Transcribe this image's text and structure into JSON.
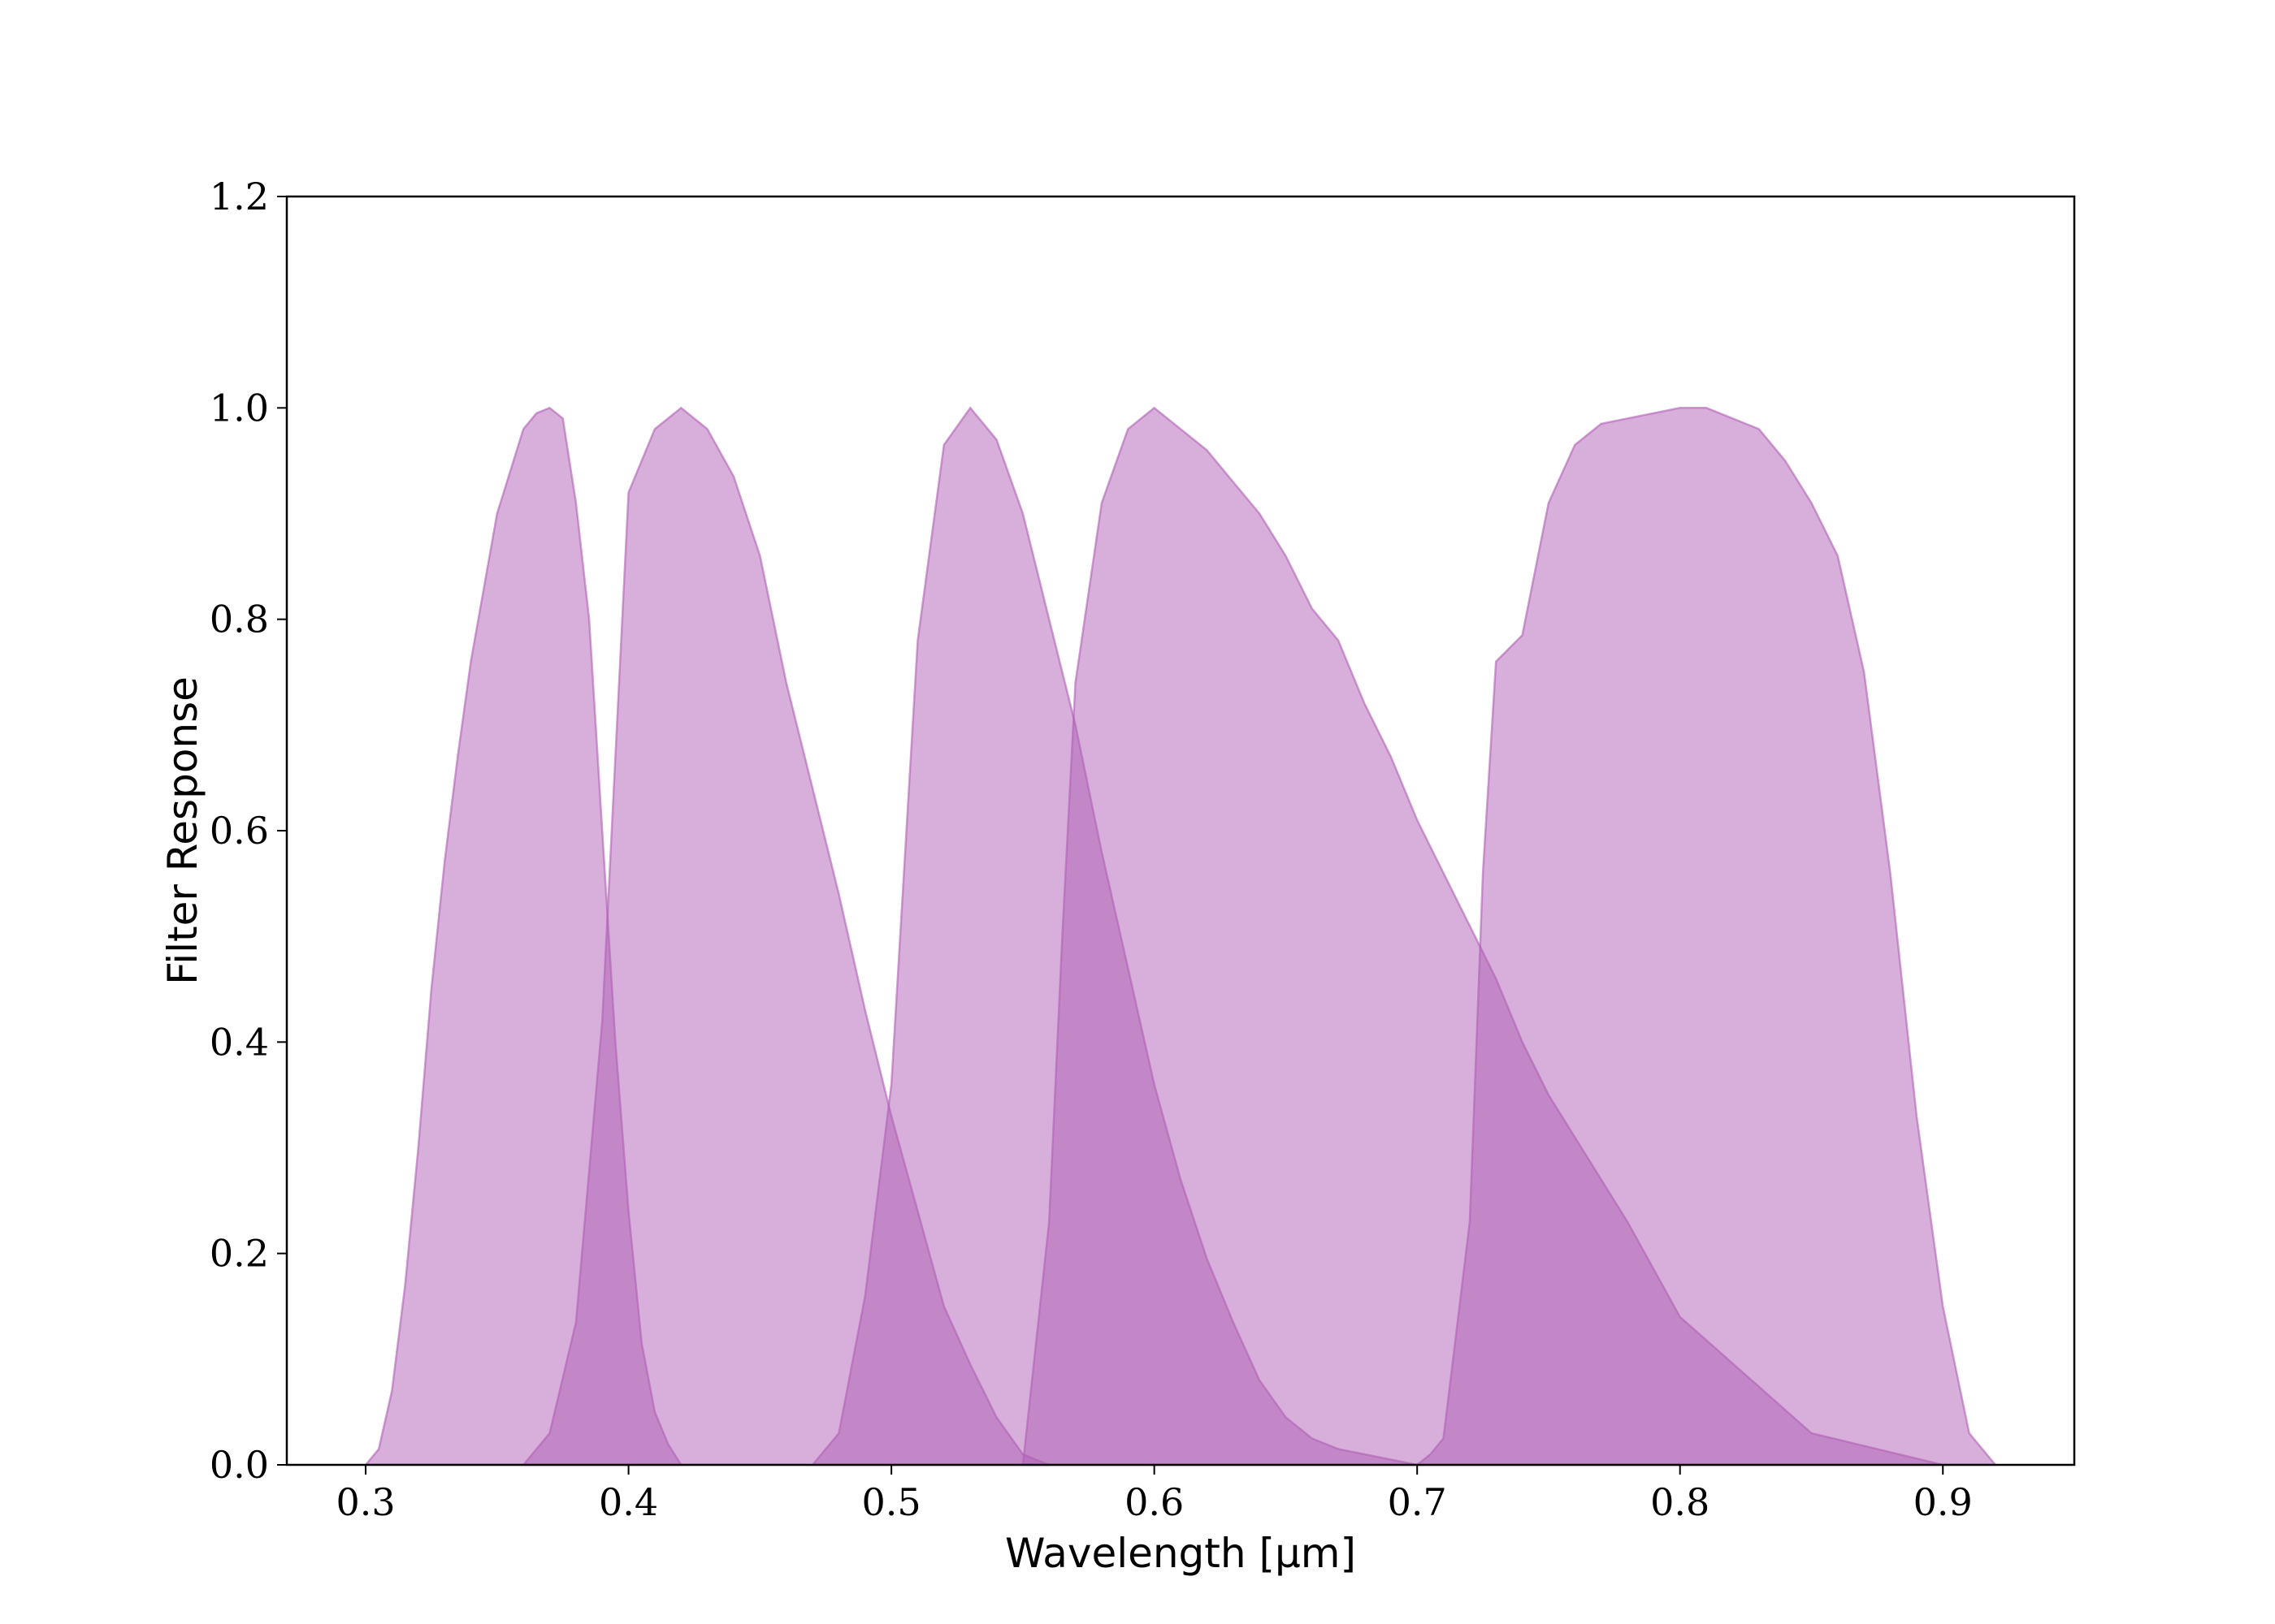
{
  "chart_data": {
    "type": "area",
    "xlabel": "Wavelength [μm]",
    "ylabel": "Filter Response",
    "xlim": [
      0.27,
      0.95
    ],
    "ylim": [
      0.0,
      1.2
    ],
    "xticks": [
      0.3,
      0.4,
      0.5,
      0.6,
      0.7,
      0.8,
      0.9
    ],
    "xtick_labels": [
      "0.3",
      "0.4",
      "0.5",
      "0.6",
      "0.7",
      "0.8",
      "0.9"
    ],
    "yticks": [
      0.0,
      0.2,
      0.4,
      0.6,
      0.8,
      1.0,
      1.2
    ],
    "ytick_labels": [
      "0.0",
      "0.2",
      "0.4",
      "0.6",
      "0.8",
      "1.0",
      "1.2"
    ],
    "fill_color": "#b05fb5",
    "fill_opacity": 0.5,
    "grid": false,
    "series": [
      {
        "x": [
          0.3,
          0.305,
          0.31,
          0.315,
          0.32,
          0.325,
          0.33,
          0.335,
          0.34,
          0.35,
          0.36,
          0.365,
          0.37,
          0.375,
          0.38,
          0.385,
          0.39,
          0.395,
          0.4,
          0.405,
          0.41,
          0.415,
          0.42
        ],
        "y": [
          0.0,
          0.015,
          0.07,
          0.17,
          0.3,
          0.45,
          0.57,
          0.67,
          0.76,
          0.9,
          0.98,
          0.995,
          1.0,
          0.99,
          0.91,
          0.8,
          0.6,
          0.4,
          0.24,
          0.115,
          0.05,
          0.02,
          0.0
        ]
      },
      {
        "x": [
          0.36,
          0.37,
          0.38,
          0.39,
          0.4,
          0.41,
          0.42,
          0.43,
          0.44,
          0.45,
          0.46,
          0.47,
          0.48,
          0.49,
          0.5,
          0.51,
          0.52,
          0.53,
          0.54,
          0.55,
          0.56
        ],
        "y": [
          0.0,
          0.03,
          0.135,
          0.42,
          0.92,
          0.98,
          1.0,
          0.98,
          0.935,
          0.86,
          0.74,
          0.64,
          0.54,
          0.43,
          0.33,
          0.24,
          0.15,
          0.095,
          0.045,
          0.01,
          0.0
        ]
      },
      {
        "x": [
          0.47,
          0.48,
          0.49,
          0.5,
          0.51,
          0.52,
          0.53,
          0.54,
          0.55,
          0.56,
          0.57,
          0.58,
          0.59,
          0.6,
          0.61,
          0.62,
          0.63,
          0.64,
          0.65,
          0.66,
          0.67,
          0.68,
          0.69,
          0.7
        ],
        "y": [
          0.0,
          0.03,
          0.16,
          0.36,
          0.78,
          0.965,
          1.0,
          0.97,
          0.9,
          0.8,
          0.7,
          0.58,
          0.47,
          0.36,
          0.27,
          0.195,
          0.135,
          0.08,
          0.045,
          0.025,
          0.015,
          0.01,
          0.005,
          0.0
        ]
      },
      {
        "x": [
          0.55,
          0.56,
          0.565,
          0.57,
          0.58,
          0.59,
          0.6,
          0.61,
          0.62,
          0.63,
          0.64,
          0.65,
          0.66,
          0.67,
          0.68,
          0.69,
          0.7,
          0.71,
          0.72,
          0.73,
          0.74,
          0.75,
          0.76,
          0.77,
          0.78,
          0.79,
          0.8,
          0.85,
          0.9
        ],
        "y": [
          0.0,
          0.23,
          0.5,
          0.74,
          0.91,
          0.98,
          1.0,
          0.98,
          0.96,
          0.93,
          0.9,
          0.86,
          0.81,
          0.78,
          0.72,
          0.67,
          0.61,
          0.56,
          0.51,
          0.46,
          0.4,
          0.35,
          0.31,
          0.27,
          0.23,
          0.185,
          0.14,
          0.03,
          0.0
        ]
      },
      {
        "x": [
          0.7,
          0.705,
          0.71,
          0.72,
          0.725,
          0.73,
          0.74,
          0.75,
          0.76,
          0.77,
          0.78,
          0.79,
          0.8,
          0.81,
          0.82,
          0.83,
          0.84,
          0.85,
          0.86,
          0.87,
          0.88,
          0.89,
          0.9,
          0.91,
          0.92
        ],
        "y": [
          0.0,
          0.01,
          0.025,
          0.23,
          0.56,
          0.76,
          0.785,
          0.91,
          0.965,
          0.985,
          0.99,
          0.995,
          1.0,
          1.0,
          0.99,
          0.98,
          0.95,
          0.91,
          0.86,
          0.75,
          0.56,
          0.33,
          0.15,
          0.03,
          0.0
        ]
      }
    ]
  }
}
